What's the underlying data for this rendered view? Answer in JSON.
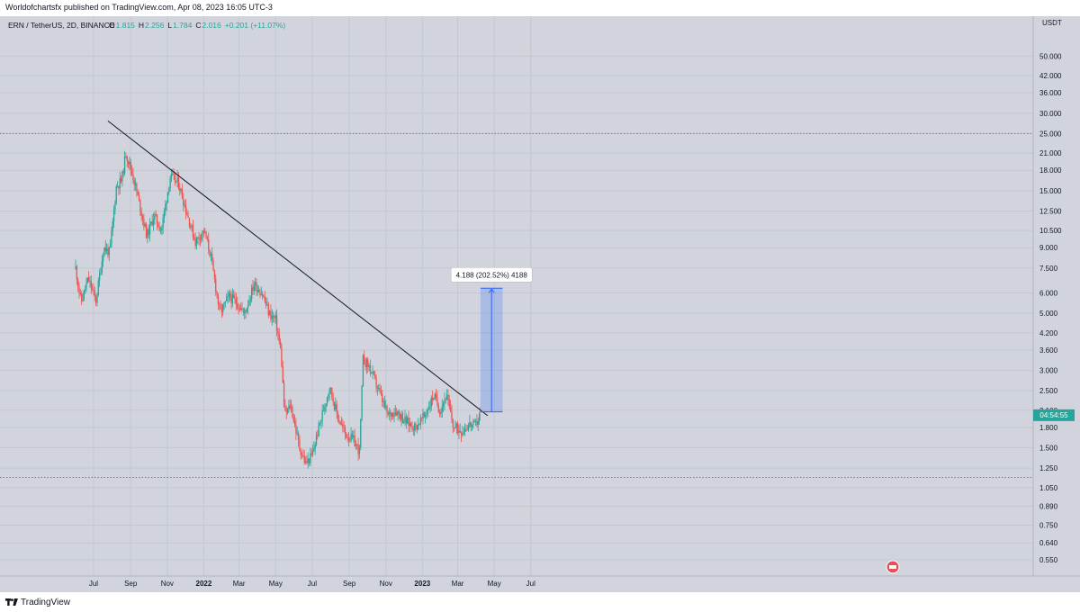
{
  "published": "Worldofchartsfx published on TradingView.com, Apr 08, 2023 16:05 UTC-3",
  "header": {
    "symbol": "ERN / TetherUS, 2D, BINANCE",
    "o_label": "O",
    "o": "1.815",
    "h_label": "H",
    "h": "2.256",
    "l_label": "L",
    "l": "1.784",
    "c_label": "C",
    "c": "2.016",
    "change": "+0.201 (+11.07%)"
  },
  "axis_unit": "USDT",
  "price_ticks": [
    "50.000",
    "42.000",
    "36.000",
    "30.000",
    "25.000",
    "21.000",
    "18.000",
    "15.000",
    "12.500",
    "10.500",
    "9.000",
    "7.500",
    "6.000",
    "5.000",
    "4.200",
    "3.600",
    "3.000",
    "2.500",
    "2.100",
    "1.800",
    "1.500",
    "1.250",
    "1.050",
    "0.890",
    "0.750",
    "0.640",
    "0.550"
  ],
  "time_ticks": [
    "Jul",
    "Sep",
    "Nov",
    "2022",
    "Mar",
    "May",
    "Jul",
    "Sep",
    "Nov",
    "2023",
    "Mar",
    "May",
    "Jul"
  ],
  "current_price_label": "04:54:55",
  "measure_label": "4.188 (202.52%) 4188",
  "brand": "TradingView",
  "colors": {
    "up": "#26a69a",
    "down": "#ef5350",
    "measure": "#2962ff",
    "trendline": "#131722",
    "price_tag": "#26a69a"
  },
  "chart_data": {
    "type": "candlestick",
    "scale": "log",
    "y_axis_range": [
      0.52,
      58
    ],
    "x_axis_range": [
      "2021-06-01",
      "2023-07-15"
    ],
    "grid": true,
    "swing_path": [
      [
        "2021-06-01",
        7.5
      ],
      [
        "2021-06-10",
        5.5
      ],
      [
        "2021-06-22",
        6.8
      ],
      [
        "2021-07-05",
        5.6
      ],
      [
        "2021-07-18",
        9.0
      ],
      [
        "2021-07-28",
        8.6
      ],
      [
        "2021-08-08",
        15.5
      ],
      [
        "2021-08-17",
        16.5
      ],
      [
        "2021-08-24",
        21.0
      ],
      [
        "2021-09-05",
        17.0
      ],
      [
        "2021-09-15",
        13.5
      ],
      [
        "2021-09-28",
        10.0
      ],
      [
        "2021-10-10",
        12.0
      ],
      [
        "2021-10-22",
        10.5
      ],
      [
        "2021-11-06",
        17.0
      ],
      [
        "2021-11-20",
        16.0
      ],
      [
        "2021-12-05",
        12.0
      ],
      [
        "2021-12-18",
        9.5
      ],
      [
        "2022-01-01",
        10.5
      ],
      [
        "2022-01-12",
        8.5
      ],
      [
        "2022-01-28",
        5.0
      ],
      [
        "2022-02-12",
        5.8
      ],
      [
        "2022-02-25",
        5.5
      ],
      [
        "2022-03-10",
        5.0
      ],
      [
        "2022-03-26",
        6.5
      ],
      [
        "2022-04-08",
        6.0
      ],
      [
        "2022-04-20",
        5.0
      ],
      [
        "2022-05-01",
        4.7
      ],
      [
        "2022-05-10",
        3.5
      ],
      [
        "2022-05-16",
        2.0
      ],
      [
        "2022-05-26",
        2.2
      ],
      [
        "2022-06-10",
        1.5
      ],
      [
        "2022-06-20",
        1.3
      ],
      [
        "2022-07-01",
        1.4
      ],
      [
        "2022-07-12",
        1.8
      ],
      [
        "2022-07-30",
        2.6
      ],
      [
        "2022-08-12",
        2.0
      ],
      [
        "2022-08-25",
        1.7
      ],
      [
        "2022-09-08",
        1.6
      ],
      [
        "2022-09-18",
        1.45
      ],
      [
        "2022-09-24",
        3.3
      ],
      [
        "2022-10-04",
        3.1
      ],
      [
        "2022-10-20",
        2.5
      ],
      [
        "2022-11-04",
        2.0
      ],
      [
        "2022-11-18",
        2.1
      ],
      [
        "2022-12-04",
        1.9
      ],
      [
        "2022-12-20",
        1.8
      ],
      [
        "2023-01-05",
        2.0
      ],
      [
        "2023-01-20",
        2.4
      ],
      [
        "2023-01-30",
        2.1
      ],
      [
        "2023-02-10",
        2.4
      ],
      [
        "2023-02-22",
        1.8
      ],
      [
        "2023-03-08",
        1.75
      ],
      [
        "2023-03-20",
        1.85
      ],
      [
        "2023-03-30",
        1.82
      ],
      [
        "2023-04-07",
        2.016
      ]
    ],
    "trendline": [
      [
        "2021-07-25",
        28.0
      ],
      [
        "2023-04-20",
        2.0
      ]
    ],
    "dotted_levels": [
      25.0,
      1.15
    ],
    "measure": {
      "from_date": "2023-04-08",
      "to_date": "2023-05-15",
      "low": 2.07,
      "high": 6.258,
      "diff": 4.188,
      "pct": 202.52
    },
    "last_price": 2.016
  }
}
